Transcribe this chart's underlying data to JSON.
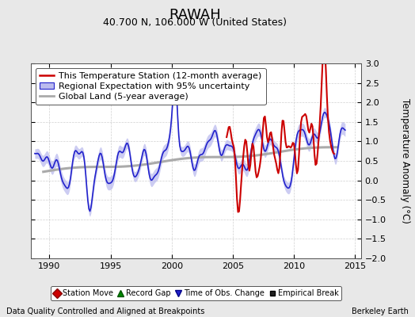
{
  "title": "RAWAH",
  "subtitle": "40.700 N, 106.000 W (United States)",
  "ylabel": "Temperature Anomaly (°C)",
  "footer_left": "Data Quality Controlled and Aligned at Breakpoints",
  "footer_right": "Berkeley Earth",
  "xlim": [
    1988.5,
    2015.5
  ],
  "ylim": [
    -2.0,
    3.0
  ],
  "yticks": [
    -2,
    -1.5,
    -1,
    -0.5,
    0,
    0.5,
    1,
    1.5,
    2,
    2.5,
    3
  ],
  "xticks": [
    1990,
    1995,
    2000,
    2005,
    2010,
    2015
  ],
  "bg_color": "#e8e8e8",
  "plot_bg": "#ffffff",
  "red_color": "#cc0000",
  "blue_color": "#2222cc",
  "blue_fill": "#bbbbee",
  "gray_color": "#aaaaaa",
  "title_fontsize": 13,
  "subtitle_fontsize": 9,
  "legend_fontsize": 8,
  "tick_fontsize": 8,
  "footer_fontsize": 7
}
